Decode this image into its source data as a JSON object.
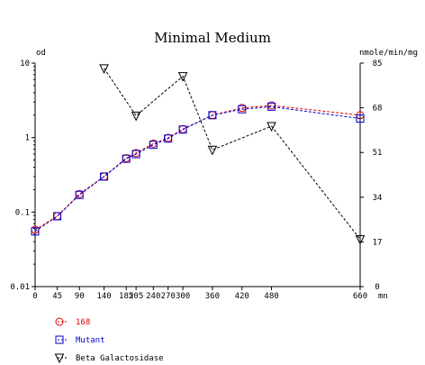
{
  "chart_data": {
    "type": "line",
    "title": "Minimal Medium",
    "left_axis_unit": "od",
    "right_axis_unit": "nmole/min/mg",
    "x_axis_unit": "mn",
    "x_tick_labels": [
      "0",
      "45",
      "90",
      "140",
      "185",
      "205",
      "240",
      "270",
      "300",
      "360",
      "420",
      "480",
      "660"
    ],
    "x_ticks": [
      0,
      45,
      90,
      140,
      185,
      205,
      240,
      270,
      300,
      360,
      420,
      480,
      660
    ],
    "xlim": [
      0,
      660
    ],
    "ylim_left": [
      0.01,
      10
    ],
    "y_scale_left": "log",
    "y_tick_labels_left": [
      "10",
      "1",
      "0.1",
      "0.01"
    ],
    "y_ticks_left": [
      10,
      1,
      0.1,
      0.01
    ],
    "ylim_right": [
      0,
      85
    ],
    "y_tick_labels_right": [
      "85",
      "68",
      "51",
      "34",
      "17",
      "0"
    ],
    "y_ticks_right": [
      85,
      68,
      51,
      34,
      17,
      0
    ],
    "grid": false,
    "legend_position": "bottom-left",
    "series": [
      {
        "name": "168",
        "axis": "left",
        "marker": "circle",
        "color": "#dd0000",
        "x": [
          0,
          45,
          90,
          140,
          185,
          205,
          240,
          270,
          300,
          360,
          420,
          480,
          660
        ],
        "y": [
          0.058,
          0.088,
          0.175,
          0.3,
          0.53,
          0.62,
          0.83,
          0.99,
          1.3,
          2.0,
          2.5,
          2.7,
          2.0
        ]
      },
      {
        "name": "Mutant",
        "axis": "left",
        "marker": "square",
        "color": "#0000cc",
        "x": [
          0,
          45,
          90,
          140,
          185,
          205,
          240,
          270,
          300,
          360,
          420,
          480,
          660
        ],
        "y": [
          0.055,
          0.088,
          0.17,
          0.3,
          0.52,
          0.6,
          0.8,
          0.97,
          1.28,
          2.0,
          2.4,
          2.6,
          1.8
        ]
      },
      {
        "name": "Beta Galactosidase",
        "axis": "right",
        "marker": "triangle-down",
        "color": "#000000",
        "x": [
          140,
          205,
          300,
          360,
          480,
          660
        ],
        "y": [
          83,
          65,
          80,
          52,
          61,
          18
        ]
      }
    ]
  }
}
